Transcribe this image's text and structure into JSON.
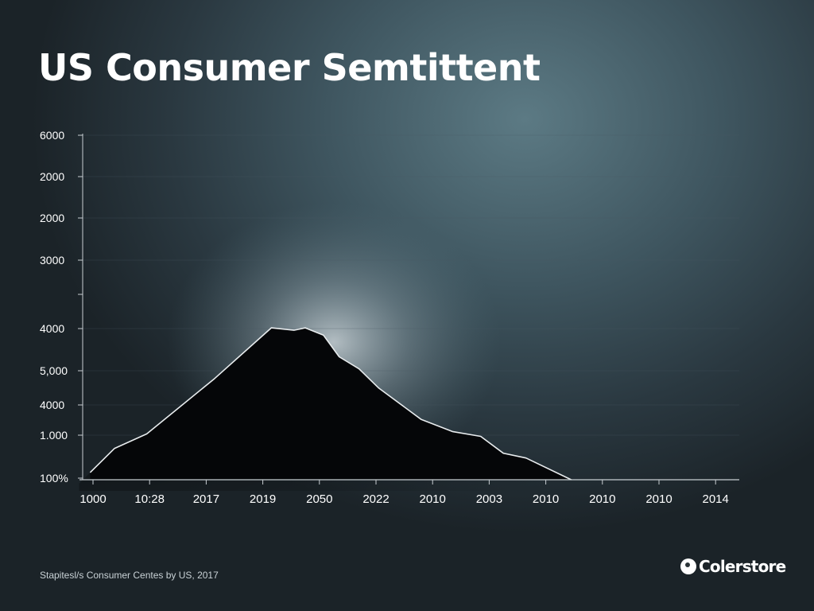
{
  "title": "US Consumer Semtittent",
  "source": "Stapitesl/s Consumer Centes by US, 2017",
  "brand": {
    "name": "Colerstore",
    "icon": "brand-logo-icon"
  },
  "colors": {
    "area_fill": "#050608",
    "area_stroke": "#e8ecee",
    "axis": "#c8ced2",
    "grid": "#4a5a62",
    "text": "#ffffff"
  },
  "chart_data": {
    "type": "area",
    "title": "US Consumer Semtittent",
    "xlabel": "",
    "ylabel": "",
    "grid": true,
    "y_ticks": [
      "6000",
      "2000",
      "2000",
      "3000",
      "4000",
      "5,000",
      "4000",
      "1.000",
      "100%"
    ],
    "x_ticks": [
      "1000",
      "10:28",
      "2017",
      "2019",
      "2050",
      "2022",
      "2010",
      "2003",
      "2010",
      "2010",
      "2010",
      "2014"
    ],
    "x_index_range": [
      0,
      11
    ],
    "y_range": [
      0,
      100
    ],
    "series": [
      {
        "x": [
          -0.05,
          0.38,
          0.95,
          2.15,
          3.15,
          3.55,
          3.75,
          4.07,
          4.35,
          4.7,
          5.05,
          5.8,
          6.35,
          6.85,
          7.25,
          7.65,
          8.45
        ],
        "values": [
          3,
          13,
          19,
          42,
          63,
          62,
          63,
          60,
          51,
          46,
          38,
          25,
          20,
          18,
          11,
          9,
          0
        ]
      }
    ]
  }
}
